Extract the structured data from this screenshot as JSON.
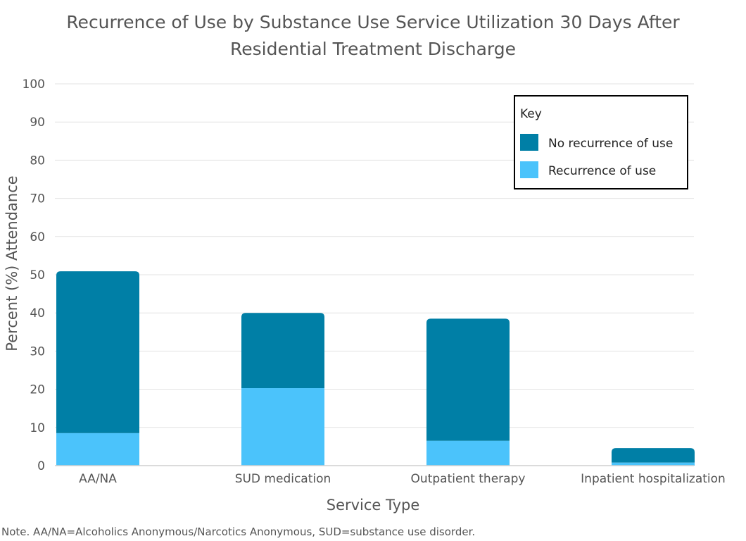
{
  "chart_data": {
    "type": "bar",
    "stacked": true,
    "title": "Recurrence of Use by Substance Use Service Utilization 30 Days After Residential Treatment Discharge",
    "title_lines": [
      "Recurrence of Use by Substance Use Service Utilization 30 Days After",
      "Residential Treatment Discharge"
    ],
    "xlabel": "Service Type",
    "ylabel": "Percent (%) Attendance",
    "ylim": [
      0,
      100
    ],
    "yticks": [
      0,
      10,
      20,
      30,
      40,
      50,
      60,
      70,
      80,
      90,
      100
    ],
    "grid": true,
    "categories": [
      "AA/NA",
      "SUD medication",
      "Outpatient therapy",
      "Inpatient hospitalization"
    ],
    "series": [
      {
        "name": "Recurrence of use",
        "color": "#4bc3fb",
        "values": [
          8.5,
          20.3,
          6.5,
          0.8
        ]
      },
      {
        "name": "No recurrence of use",
        "color": "#007fa6",
        "values": [
          42.4,
          19.7,
          32.0,
          3.8
        ]
      }
    ],
    "legend": {
      "title": "Key",
      "placement": "top-right",
      "entries": [
        "No recurrence of use",
        "Recurrence of use"
      ]
    },
    "note": "Note. AA/NA=Alcoholics Anonymous/Narcotics Anonymous, SUD=substance use disorder."
  }
}
